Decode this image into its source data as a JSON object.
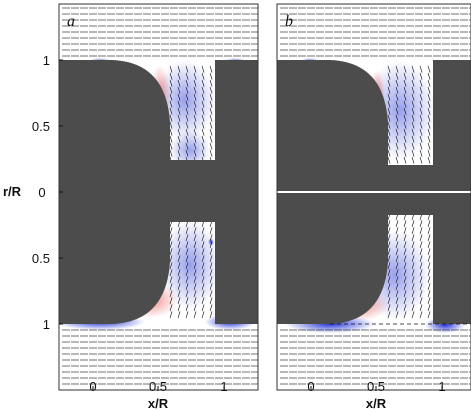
{
  "panels": [
    {
      "label": "a"
    },
    {
      "label": "b"
    }
  ],
  "y_axis": {
    "title": "r/R",
    "tick_labels": [
      "1",
      "0.5",
      "0",
      "0.5",
      "1"
    ]
  },
  "x_axis": {
    "title": "x/R",
    "tick_labels": [
      "0",
      "0.5",
      "1"
    ]
  },
  "colors": {
    "body": "#4c4c4c",
    "vector": "#111111",
    "positive": "#e02a2a",
    "negative": "#1a2bd6",
    "background": "#ffffff"
  }
}
